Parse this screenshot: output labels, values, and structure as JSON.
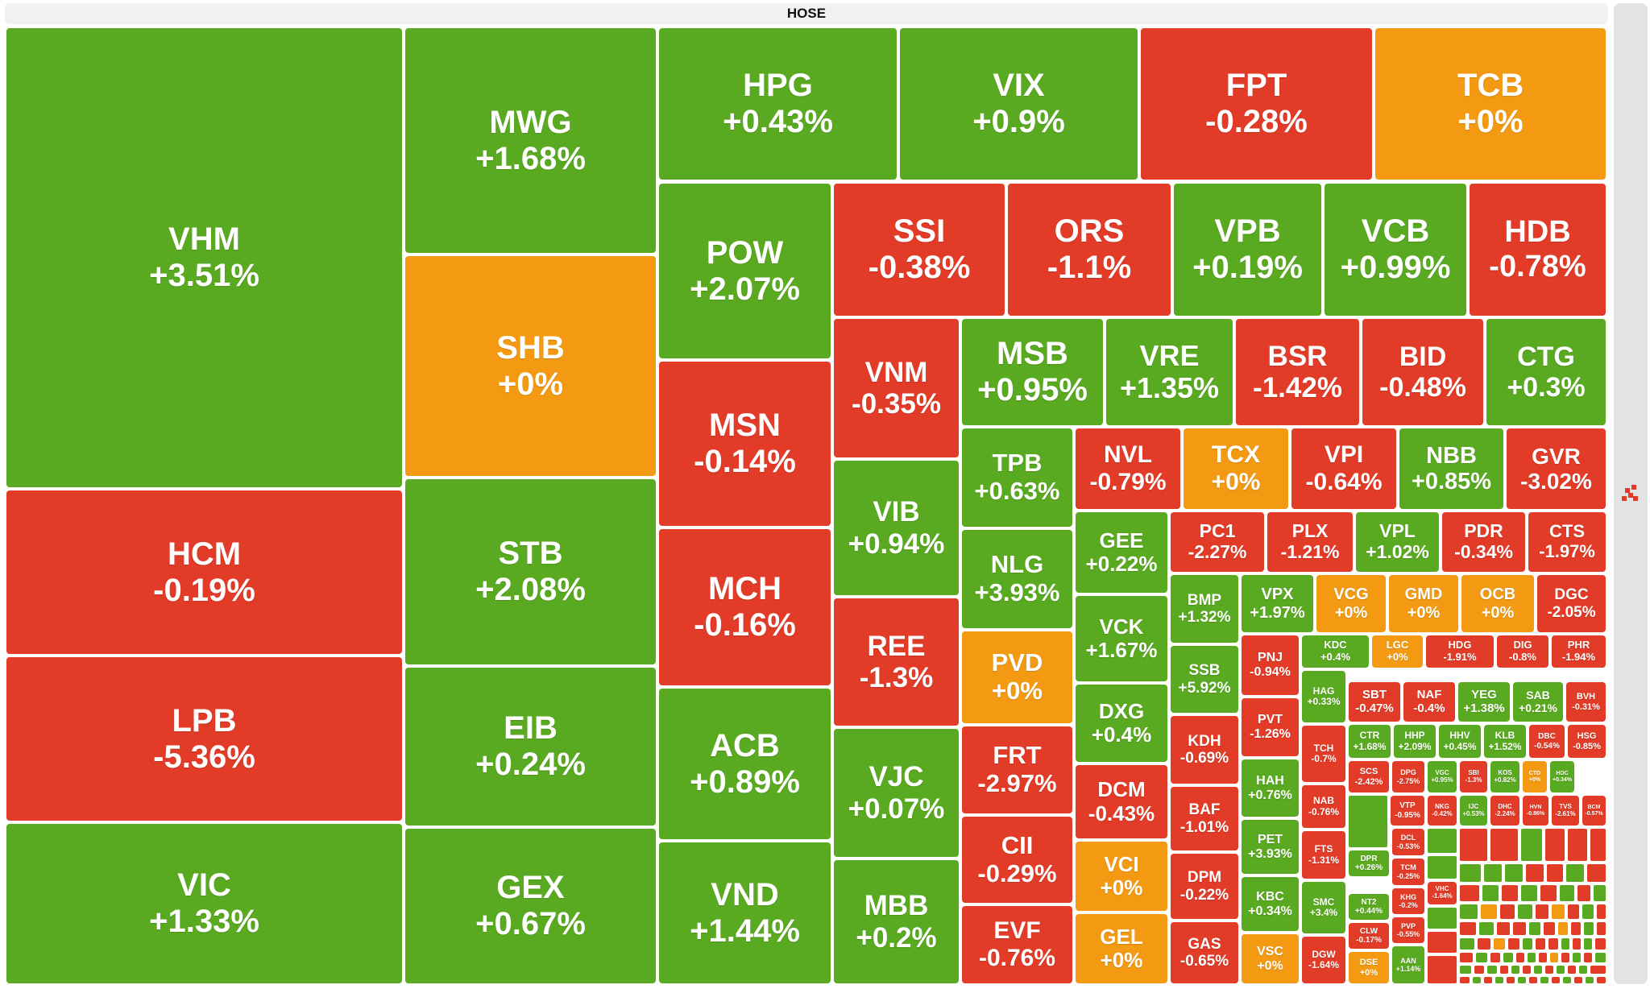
{
  "exchange": "HOSE",
  "colors": {
    "up": "#59aa20",
    "down": "#e23b27",
    "flat": "#f39a12"
  },
  "icons": {
    "scroll_handle": "scroll-handle-icon"
  },
  "chart_data": {
    "type": "treemap",
    "title": "HOSE",
    "items": [
      {
        "symbol": "VHM",
        "change": "+3.51%"
      },
      {
        "symbol": "HCM",
        "change": "-0.19%"
      },
      {
        "symbol": "LPB",
        "change": "-5.36%"
      },
      {
        "symbol": "VIC",
        "change": "+1.33%"
      },
      {
        "symbol": "MWG",
        "change": "+1.68%"
      },
      {
        "symbol": "SHB",
        "change": "+0%"
      },
      {
        "symbol": "STB",
        "change": "+2.08%"
      },
      {
        "symbol": "EIB",
        "change": "+0.24%"
      },
      {
        "symbol": "GEX",
        "change": "+0.67%"
      },
      {
        "symbol": "HPG",
        "change": "+0.43%"
      },
      {
        "symbol": "VIX",
        "change": "+0.9%"
      },
      {
        "symbol": "FPT",
        "change": "-0.28%"
      },
      {
        "symbol": "TCB",
        "change": "+0%"
      },
      {
        "symbol": "POW",
        "change": "+2.07%"
      },
      {
        "symbol": "MSN",
        "change": "-0.14%"
      },
      {
        "symbol": "MCH",
        "change": "-0.16%"
      },
      {
        "symbol": "ACB",
        "change": "+0.89%"
      },
      {
        "symbol": "VND",
        "change": "+1.44%"
      },
      {
        "symbol": "SSI",
        "change": "-0.38%"
      },
      {
        "symbol": "ORS",
        "change": "-1.1%"
      },
      {
        "symbol": "VPB",
        "change": "+0.19%"
      },
      {
        "symbol": "VCB",
        "change": "+0.99%"
      },
      {
        "symbol": "HDB",
        "change": "-0.78%"
      },
      {
        "symbol": "VNM",
        "change": "-0.35%"
      },
      {
        "symbol": "VIB",
        "change": "+0.94%"
      },
      {
        "symbol": "REE",
        "change": "-1.3%"
      },
      {
        "symbol": "VJC",
        "change": "+0.07%"
      },
      {
        "symbol": "MBB",
        "change": "+0.2%"
      },
      {
        "symbol": "MSB",
        "change": "+0.95%"
      },
      {
        "symbol": "VRE",
        "change": "+1.35%"
      },
      {
        "symbol": "BSR",
        "change": "-1.42%"
      },
      {
        "symbol": "BID",
        "change": "-0.48%"
      },
      {
        "symbol": "CTG",
        "change": "+0.3%"
      },
      {
        "symbol": "TPB",
        "change": "+0.63%"
      },
      {
        "symbol": "NLG",
        "change": "+3.93%"
      },
      {
        "symbol": "PVD",
        "change": "+0%"
      },
      {
        "symbol": "FRT",
        "change": "-2.97%"
      },
      {
        "symbol": "CII",
        "change": "-0.29%"
      },
      {
        "symbol": "EVF",
        "change": "-0.76%"
      },
      {
        "symbol": "NVL",
        "change": "-0.79%"
      },
      {
        "symbol": "TCX",
        "change": "+0%"
      },
      {
        "symbol": "VPI",
        "change": "-0.64%"
      },
      {
        "symbol": "NBB",
        "change": "+0.85%"
      },
      {
        "symbol": "GVR",
        "change": "-3.02%"
      },
      {
        "symbol": "GEE",
        "change": "+0.22%"
      },
      {
        "symbol": "VCK",
        "change": "+1.67%"
      },
      {
        "symbol": "DXG",
        "change": "+0.4%"
      },
      {
        "symbol": "DCM",
        "change": "-0.43%"
      },
      {
        "symbol": "VCI",
        "change": "+0%"
      },
      {
        "symbol": "GEL",
        "change": "+0%"
      },
      {
        "symbol": "PC1",
        "change": "-2.27%"
      },
      {
        "symbol": "PLX",
        "change": "-1.21%"
      },
      {
        "symbol": "VPL",
        "change": "+1.02%"
      },
      {
        "symbol": "PDR",
        "change": "-0.34%"
      },
      {
        "symbol": "CTS",
        "change": "-1.97%"
      },
      {
        "symbol": "BMP",
        "change": "+1.32%"
      },
      {
        "symbol": "VPX",
        "change": "+1.97%"
      },
      {
        "symbol": "VCG",
        "change": "+0%"
      },
      {
        "symbol": "GMD",
        "change": "+0%"
      },
      {
        "symbol": "OCB",
        "change": "+0%"
      },
      {
        "symbol": "DGC",
        "change": "-2.05%"
      },
      {
        "symbol": "SSB",
        "change": "+5.92%"
      },
      {
        "symbol": "KDH",
        "change": "-0.69%"
      },
      {
        "symbol": "BAF",
        "change": "-1.01%"
      },
      {
        "symbol": "DPM",
        "change": "-0.22%"
      },
      {
        "symbol": "GAS",
        "change": "-0.65%"
      },
      {
        "symbol": "PNJ",
        "change": "-0.94%"
      },
      {
        "symbol": "PVT",
        "change": "-1.26%"
      },
      {
        "symbol": "HAH",
        "change": "+0.76%"
      },
      {
        "symbol": "PET",
        "change": "+3.93%"
      },
      {
        "symbol": "KBC",
        "change": "+0.34%"
      },
      {
        "symbol": "VSC",
        "change": "+0%"
      },
      {
        "symbol": "KDC",
        "change": "+0.4%"
      },
      {
        "symbol": "LGC",
        "change": "+0%"
      },
      {
        "symbol": "HDG",
        "change": "-1.91%"
      },
      {
        "symbol": "DIG",
        "change": "-0.8%"
      },
      {
        "symbol": "PHR",
        "change": "-1.94%"
      },
      {
        "symbol": "HAG",
        "change": "+0.33%"
      },
      {
        "symbol": "TCH",
        "change": "-0.7%"
      },
      {
        "symbol": "NAB",
        "change": "-0.76%"
      },
      {
        "symbol": "FTS",
        "change": "-1.31%"
      },
      {
        "symbol": "SMC",
        "change": "+3.4%"
      },
      {
        "symbol": "DGW",
        "change": "-1.64%"
      },
      {
        "symbol": "SBT",
        "change": "-0.47%"
      },
      {
        "symbol": "NAF",
        "change": "-0.4%"
      },
      {
        "symbol": "YEG",
        "change": "+1.38%"
      },
      {
        "symbol": "SAB",
        "change": "+0.21%"
      },
      {
        "symbol": "BVH",
        "change": "-0.31%"
      },
      {
        "symbol": "CTR",
        "change": "+1.68%"
      },
      {
        "symbol": "HHP",
        "change": "+2.09%"
      },
      {
        "symbol": "HHV",
        "change": "+0.45%"
      },
      {
        "symbol": "KLB",
        "change": "+1.52%"
      },
      {
        "symbol": "DBC",
        "change": "-0.54%"
      },
      {
        "symbol": "HSG",
        "change": "-0.85%"
      },
      {
        "symbol": "SCS",
        "change": "-2.42%"
      },
      {
        "symbol": "DPG",
        "change": "-2.75%"
      },
      {
        "symbol": "VGC",
        "change": "+0.95%"
      },
      {
        "symbol": "SBI",
        "change": "-1.3%"
      },
      {
        "symbol": "KOS",
        "change": "+0.82%"
      },
      {
        "symbol": "CTD",
        "change": "+0%"
      },
      {
        "symbol": "HDC",
        "change": "+0.34%"
      },
      {
        "symbol": "VTP",
        "change": "-0.95%"
      },
      {
        "symbol": "NKG",
        "change": "-0.42%"
      },
      {
        "symbol": "IJC",
        "change": "+0.53%"
      },
      {
        "symbol": "DHC",
        "change": "-2.24%"
      },
      {
        "symbol": "HVN",
        "change": "-0.86%"
      },
      {
        "symbol": "TVS",
        "change": "-2.61%"
      },
      {
        "symbol": "BCM",
        "change": "-0.57%"
      },
      {
        "symbol": "DPR",
        "change": "+0.26%"
      },
      {
        "symbol": "DCL",
        "change": "-0.53%"
      },
      {
        "symbol": "TCM",
        "change": "-0.25%"
      },
      {
        "symbol": "VHC",
        "change": "-1.64%"
      },
      {
        "symbol": "NT2",
        "change": "+0.44%"
      },
      {
        "symbol": "KHG",
        "change": "-0.2%"
      },
      {
        "symbol": "CLW",
        "change": "-0.17%"
      },
      {
        "symbol": "PVP",
        "change": "-0.55%"
      },
      {
        "symbol": "DSE",
        "change": "+0%"
      },
      {
        "symbol": "AAN",
        "change": "+1.14%"
      }
    ]
  }
}
